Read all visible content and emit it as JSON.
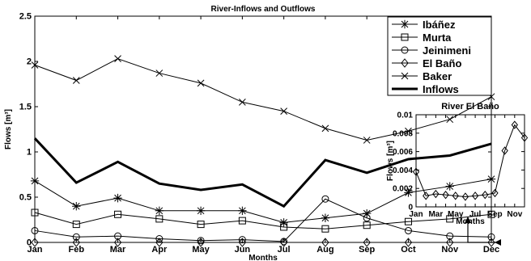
{
  "chart_data": [
    {
      "type": "line",
      "title": "River-Inflows and Outflows",
      "xlabel": "Months",
      "ylabel": "Flows [m³]",
      "categories": [
        "Jan",
        "Feb",
        "Mar",
        "Apr",
        "May",
        "Jun",
        "Jul",
        "Aug",
        "Sep",
        "Oct",
        "Nov",
        "Dec"
      ],
      "ylim": [
        0,
        2.5
      ],
      "yticks": [
        "0",
        "0.5",
        "1",
        "1.5",
        "2",
        "2.5"
      ],
      "legend_position": "top-right",
      "series": [
        {
          "name": "Ibáñez",
          "marker": "asterisk",
          "values": [
            0.68,
            0.4,
            0.49,
            0.35,
            0.35,
            0.35,
            0.22,
            0.27,
            0.32,
            0.55,
            0.62,
            0.7
          ]
        },
        {
          "name": "Murta",
          "marker": "square",
          "values": [
            0.33,
            0.2,
            0.31,
            0.26,
            0.2,
            0.24,
            0.17,
            0.15,
            0.19,
            0.23,
            0.26,
            0.31
          ]
        },
        {
          "name": "Jeinimeni",
          "marker": "circle",
          "values": [
            0.13,
            0.06,
            0.07,
            0.04,
            0.02,
            0.03,
            0.01,
            0.48,
            0.27,
            0.13,
            0.07,
            0.06
          ]
        },
        {
          "name": "El Baño",
          "marker": "diamond",
          "values": [
            0.0,
            0.0,
            0.0,
            0.0,
            0.0,
            0.0,
            0.0,
            0.0,
            0.0,
            0.0,
            0.0,
            0.0
          ]
        },
        {
          "name": "Baker",
          "marker": "x",
          "values": [
            1.96,
            1.79,
            2.03,
            1.87,
            1.76,
            1.55,
            1.45,
            1.26,
            1.13,
            1.23,
            1.36,
            1.61
          ]
        },
        {
          "name": "Inflows",
          "marker": "none",
          "bold": true,
          "values": [
            1.15,
            0.66,
            0.89,
            0.65,
            0.58,
            0.64,
            0.4,
            0.91,
            0.77,
            0.92,
            0.96,
            1.09
          ]
        }
      ]
    },
    {
      "type": "line",
      "title": "River El Baño",
      "xlabel": "Months",
      "ylabel": "Flows [m³]",
      "x_tick_labels": [
        "Jan",
        "Mar",
        "May",
        "Jul",
        "Sep",
        "Nov"
      ],
      "ylim": [
        0,
        0.01
      ],
      "yticks": [
        "0",
        "0.002",
        "0.004",
        "0.006",
        "0.008",
        "0.01"
      ],
      "series": [
        {
          "name": "El Baño",
          "marker": "diamond",
          "values": [
            0.0038,
            0.0012,
            0.0014,
            0.0013,
            0.0012,
            0.0011,
            0.0012,
            0.0013,
            0.0015,
            0.0061,
            0.0089,
            0.0075
          ]
        }
      ]
    }
  ]
}
